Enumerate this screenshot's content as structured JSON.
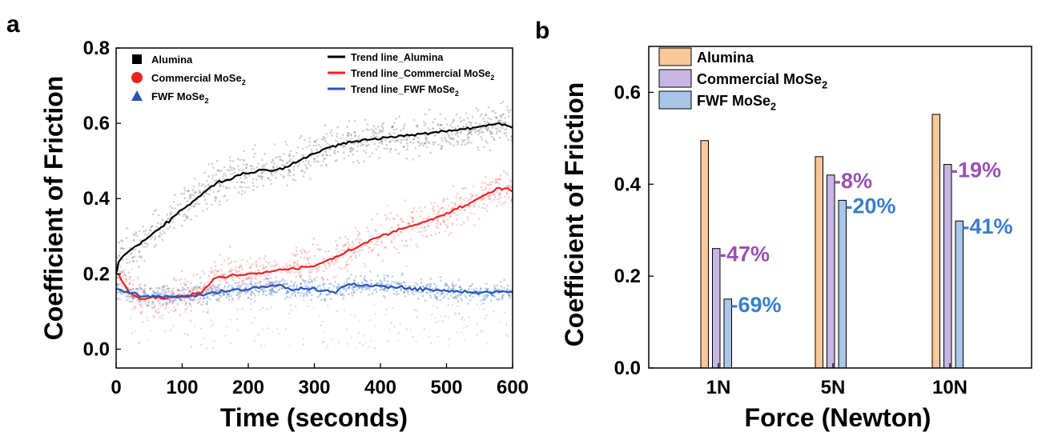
{
  "panel_labels": {
    "a": "a",
    "b": "b"
  },
  "chart_data": [
    {
      "type": "scatter",
      "id": "a",
      "xlabel": "Time (seconds)",
      "ylabel": "Coefficient of Friction",
      "xlim": [
        0,
        600
      ],
      "ylim": [
        -0.05,
        0.8
      ],
      "xticks": [
        0,
        100,
        200,
        300,
        400,
        500,
        600
      ],
      "yticks": [
        0.0,
        0.2,
        0.4,
        0.6,
        0.8
      ],
      "xtick_labels": [
        "0",
        "100",
        "200",
        "300",
        "400",
        "500",
        "600"
      ],
      "ytick_labels": [
        "0.0",
        "0.2",
        "0.4",
        "0.6",
        "0.8"
      ],
      "legend_markers": [
        {
          "label": "Alumina",
          "sub": "",
          "color": "#000000",
          "marker": "square"
        },
        {
          "label": "Commercial MoSe",
          "sub": "2",
          "color": "#ee2222",
          "marker": "circle"
        },
        {
          "label": "FWF MoSe",
          "sub": "2",
          "color": "#2b55b5",
          "marker": "triangle"
        }
      ],
      "legend_lines": [
        {
          "label": "Trend line_Alumina",
          "sub": "",
          "color": "#000000"
        },
        {
          "label": "Trend line_Commercial MoSe",
          "sub": "2",
          "color": "#ee2222"
        },
        {
          "label": "Trend line_FWF MoSe",
          "sub": "2",
          "color": "#2b55b5"
        }
      ],
      "series": [
        {
          "name": "Alumina",
          "color": "#000000",
          "scatter_color": "#777777",
          "spread": 0.05,
          "x": [
            0,
            5,
            20,
            50,
            100,
            150,
            200,
            250,
            300,
            350,
            400,
            450,
            500,
            550,
            580,
            600
          ],
          "y": [
            0.2,
            0.24,
            0.26,
            0.3,
            0.37,
            0.44,
            0.47,
            0.48,
            0.52,
            0.55,
            0.56,
            0.57,
            0.58,
            0.59,
            0.6,
            0.59
          ]
        },
        {
          "name": "Commercial MoSe2",
          "color": "#ee2222",
          "scatter_color": "#f07070",
          "spread": 0.05,
          "x": [
            0,
            5,
            10,
            20,
            30,
            40,
            60,
            100,
            130,
            140,
            150,
            200,
            250,
            300,
            350,
            400,
            450,
            500,
            550,
            580,
            600
          ],
          "y": [
            0.2,
            0.2,
            0.18,
            0.15,
            0.14,
            0.135,
            0.135,
            0.14,
            0.15,
            0.17,
            0.19,
            0.2,
            0.21,
            0.22,
            0.26,
            0.3,
            0.33,
            0.36,
            0.4,
            0.43,
            0.42
          ]
        },
        {
          "name": "FWF MoSe2",
          "color": "#2b55b5",
          "scatter_color": "#3a77c8",
          "spread": 0.025,
          "x": [
            0,
            5,
            20,
            40,
            60,
            100,
            150,
            200,
            250,
            260,
            300,
            330,
            350,
            400,
            450,
            500,
            550,
            600
          ],
          "y": [
            0.16,
            0.16,
            0.15,
            0.14,
            0.14,
            0.14,
            0.15,
            0.16,
            0.17,
            0.16,
            0.16,
            0.15,
            0.17,
            0.17,
            0.16,
            0.155,
            0.15,
            0.155
          ]
        }
      ]
    },
    {
      "type": "bar",
      "id": "b",
      "xlabel": "Force (Newton)",
      "ylabel": "Coefficient of Friction",
      "ylim": [
        0,
        0.7
      ],
      "yticks": [
        0.0,
        0.2,
        0.4,
        0.6
      ],
      "ytick_labels": [
        "0.0",
        "0.2",
        "0.4",
        "0.6"
      ],
      "categories": [
        "1N",
        "5N",
        "10N"
      ],
      "series": [
        {
          "name": "Alumina",
          "sub": "",
          "color": "#f8c79a",
          "values": [
            0.495,
            0.46,
            0.552
          ]
        },
        {
          "name": "Commercial MoSe",
          "sub": "2",
          "color": "#c7b6e2",
          "values": [
            0.26,
            0.42,
            0.443
          ]
        },
        {
          "name": "FWF MoSe",
          "sub": "2",
          "color": "#a9c6e8",
          "values": [
            0.15,
            0.365,
            0.32
          ]
        }
      ],
      "annotations": [
        {
          "category": "1N",
          "series": "Commercial MoSe2",
          "text": "-47%",
          "color": "#9a4fb5"
        },
        {
          "category": "1N",
          "series": "FWF MoSe2",
          "text": "-69%",
          "color": "#3a7ec8"
        },
        {
          "category": "5N",
          "series": "Commercial MoSe2",
          "text": "-8%",
          "color": "#9a4fb5"
        },
        {
          "category": "5N",
          "series": "FWF MoSe2",
          "text": "-20%",
          "color": "#3a7ec8"
        },
        {
          "category": "10N",
          "series": "Commercial MoSe2",
          "text": "-19%",
          "color": "#9a4fb5"
        },
        {
          "category": "10N",
          "series": "FWF MoSe2",
          "text": "-41%",
          "color": "#3a7ec8"
        }
      ]
    }
  ]
}
